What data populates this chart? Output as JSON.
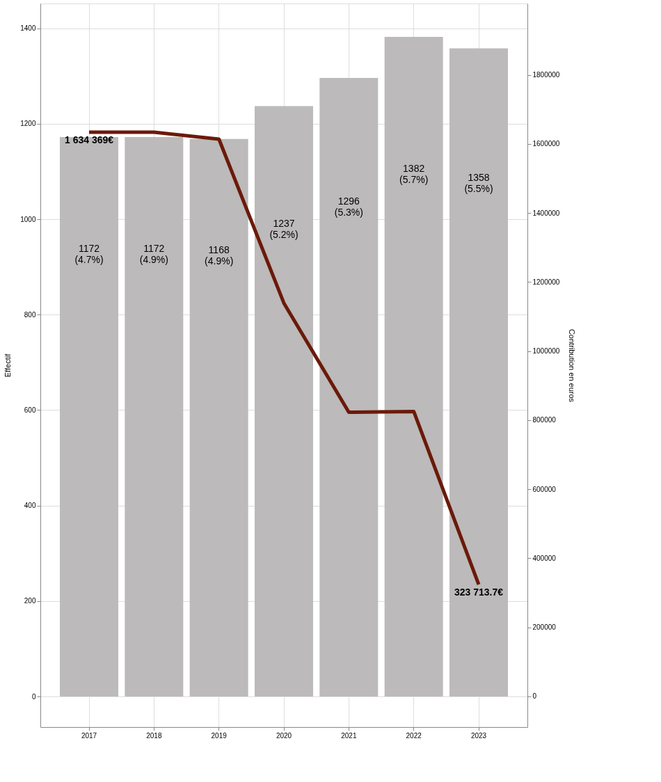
{
  "chart_data": {
    "type": "bar",
    "categories": [
      "2017",
      "2018",
      "2019",
      "2020",
      "2021",
      "2022",
      "2023"
    ],
    "ylabel": "Effectif",
    "y2label": "Contribution en euros",
    "ylim": [
      -64,
      1452
    ],
    "yticks": [
      0,
      200,
      400,
      600,
      800,
      1000,
      1200,
      1400
    ],
    "y2lim": [
      -89000,
      2007000
    ],
    "y2ticks": [
      0,
      200000,
      400000,
      600000,
      800000,
      1000000,
      1200000,
      1400000,
      1600000,
      1800000
    ],
    "grid": true,
    "series": [
      {
        "color": "#bcbaba",
        "values": [
          1172,
          1172,
          1168,
          1237,
          1296,
          1382,
          1358
        ],
        "value_labels": [
          "1172\n(4.7%)",
          "1172\n(4.9%)",
          "1168\n(4.9%)",
          "1237\n(5.2%)",
          "1296\n(5.3%)",
          "1382\n(5.7%)",
          "1358\n(5.5%)"
        ]
      },
      {
        "type": "line",
        "axis": "y2",
        "color": "#6b1a0a",
        "values": [
          1634369,
          1634000,
          1614000,
          1139000,
          823000,
          825000,
          323713.7
        ],
        "value_labels": [
          "1 634 369€",
          null,
          null,
          null,
          null,
          null,
          "323 713.7€"
        ]
      }
    ]
  }
}
